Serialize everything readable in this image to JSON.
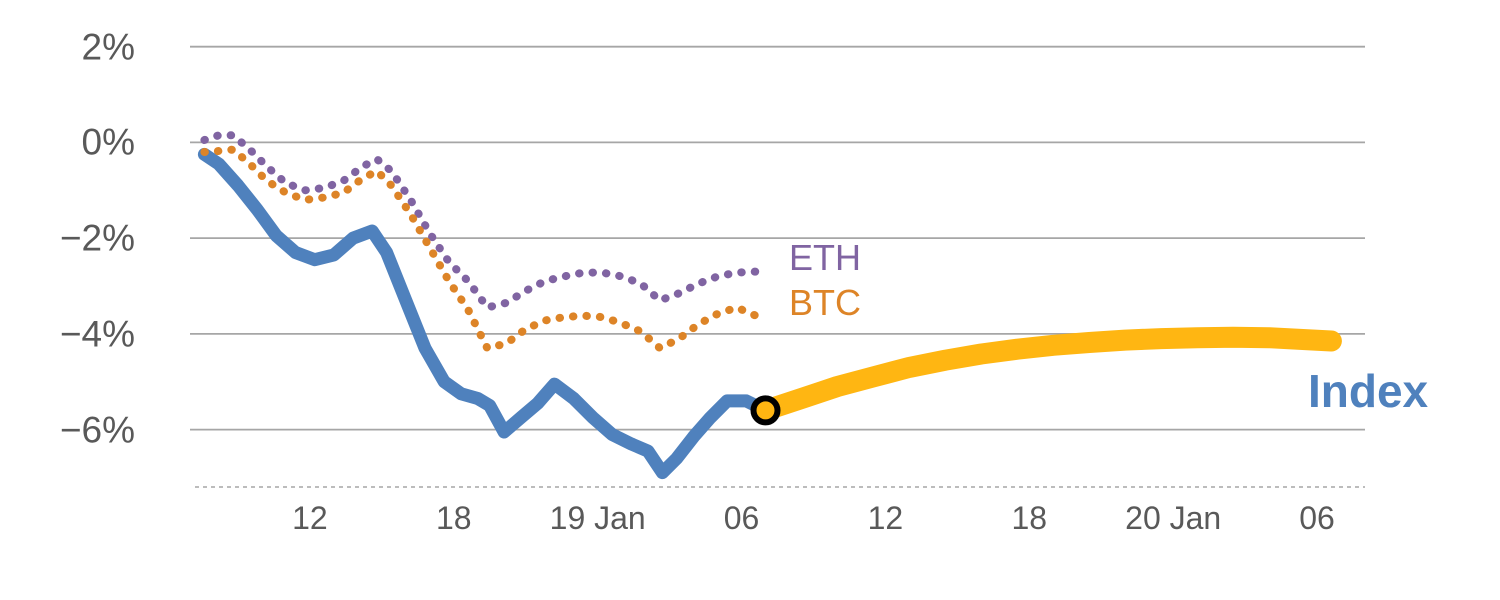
{
  "page": {
    "background": "#FFFFFF"
  },
  "colors": {
    "grid": "#A6A6A6",
    "axis_dashed": "#A6A6A6",
    "tick_text": "#595959"
  },
  "chart_data": {
    "type": "line",
    "title": "",
    "x_axis": {
      "label": "",
      "unit": "time (hours, 18 Jan – 20 Jan)",
      "range": [
        7,
        56
      ],
      "ticks": [
        {
          "x": 12,
          "label": "12"
        },
        {
          "x": 18,
          "label": "18"
        },
        {
          "x": 24,
          "label": "19 Jan"
        },
        {
          "x": 30,
          "label": "06"
        },
        {
          "x": 36,
          "label": "12"
        },
        {
          "x": 42,
          "label": "18"
        },
        {
          "x": 48,
          "label": "20 Jan"
        },
        {
          "x": 54,
          "label": "06"
        }
      ]
    },
    "y_axis": {
      "label": "",
      "unit": "%",
      "range": [
        -7.2,
        2.6
      ],
      "gridlines": true,
      "ticks": [
        {
          "y": 2,
          "label": "2%"
        },
        {
          "y": 0,
          "label": "0%"
        },
        {
          "y": -2,
          "label": "−2%"
        },
        {
          "y": -4,
          "label": "−4%"
        },
        {
          "y": -6,
          "label": "−6%"
        }
      ]
    },
    "series": [
      {
        "name": "ETH",
        "color": "#8064A2",
        "line_style": "dotted",
        "points": [
          [
            7.6,
            0.05
          ],
          [
            8.2,
            0.15
          ],
          [
            8.8,
            0.15
          ],
          [
            9.5,
            -0.15
          ],
          [
            10.2,
            -0.5
          ],
          [
            11,
            -0.85
          ],
          [
            11.8,
            -1.0
          ],
          [
            12.6,
            -0.95
          ],
          [
            13.4,
            -0.8
          ],
          [
            14.2,
            -0.5
          ],
          [
            14.8,
            -0.35
          ],
          [
            15.4,
            -0.6
          ],
          [
            16.2,
            -1.2
          ],
          [
            17,
            -1.9
          ],
          [
            17.8,
            -2.5
          ],
          [
            18.6,
            -2.9
          ],
          [
            19.4,
            -3.45
          ],
          [
            20.2,
            -3.35
          ],
          [
            21,
            -3.1
          ],
          [
            21.8,
            -2.9
          ],
          [
            22.6,
            -2.8
          ],
          [
            23.4,
            -2.72
          ],
          [
            24.2,
            -2.72
          ],
          [
            25,
            -2.8
          ],
          [
            25.8,
            -2.95
          ],
          [
            26.6,
            -3.3
          ],
          [
            27.4,
            -3.15
          ],
          [
            28.2,
            -2.95
          ],
          [
            29,
            -2.8
          ],
          [
            29.8,
            -2.72
          ],
          [
            30.6,
            -2.7
          ]
        ]
      },
      {
        "name": "BTC",
        "color": "#DD8427",
        "line_style": "dotted",
        "points": [
          [
            7.6,
            -0.2
          ],
          [
            8.2,
            -0.18
          ],
          [
            8.8,
            -0.15
          ],
          [
            9.5,
            -0.45
          ],
          [
            10.2,
            -0.8
          ],
          [
            11,
            -1.05
          ],
          [
            11.8,
            -1.2
          ],
          [
            12.6,
            -1.15
          ],
          [
            13.4,
            -1.05
          ],
          [
            14.2,
            -0.75
          ],
          [
            14.8,
            -0.6
          ],
          [
            15.4,
            -0.9
          ],
          [
            16.2,
            -1.5
          ],
          [
            17,
            -2.2
          ],
          [
            17.8,
            -2.9
          ],
          [
            18.6,
            -3.5
          ],
          [
            19.4,
            -4.3
          ],
          [
            20.2,
            -4.2
          ],
          [
            21,
            -3.9
          ],
          [
            21.8,
            -3.72
          ],
          [
            22.6,
            -3.65
          ],
          [
            23.4,
            -3.62
          ],
          [
            24.2,
            -3.65
          ],
          [
            25,
            -3.78
          ],
          [
            25.8,
            -3.95
          ],
          [
            26.6,
            -4.3
          ],
          [
            27.4,
            -4.1
          ],
          [
            28.2,
            -3.8
          ],
          [
            29,
            -3.58
          ],
          [
            29.8,
            -3.45
          ],
          [
            30.6,
            -3.62
          ]
        ]
      },
      {
        "name": "Index",
        "color": "#4F81BD",
        "line_style": "solid",
        "points": [
          [
            7.6,
            -0.25
          ],
          [
            8.2,
            -0.45
          ],
          [
            9,
            -0.9
          ],
          [
            9.8,
            -1.4
          ],
          [
            10.6,
            -1.95
          ],
          [
            11.4,
            -2.3
          ],
          [
            12.2,
            -2.45
          ],
          [
            13,
            -2.35
          ],
          [
            13.8,
            -2.0
          ],
          [
            14.6,
            -1.85
          ],
          [
            15.2,
            -2.3
          ],
          [
            16,
            -3.3
          ],
          [
            16.8,
            -4.3
          ],
          [
            17.6,
            -5.0
          ],
          [
            18.3,
            -5.25
          ],
          [
            19,
            -5.35
          ],
          [
            19.5,
            -5.5
          ],
          [
            20.1,
            -6.05
          ],
          [
            20.8,
            -5.75
          ],
          [
            21.5,
            -5.45
          ],
          [
            22.2,
            -5.05
          ],
          [
            23,
            -5.35
          ],
          [
            23.8,
            -5.75
          ],
          [
            24.6,
            -6.1
          ],
          [
            25.4,
            -6.3
          ],
          [
            26.1,
            -6.45
          ],
          [
            26.7,
            -6.9
          ],
          [
            27.3,
            -6.6
          ],
          [
            28,
            -6.15
          ],
          [
            28.7,
            -5.75
          ],
          [
            29.4,
            -5.4
          ],
          [
            30.2,
            -5.4
          ],
          [
            31,
            -5.6
          ]
        ]
      },
      {
        "name": "Index forecast",
        "color": "#FFB612",
        "line_style": "solid-thick",
        "points": [
          [
            31,
            -5.6
          ],
          [
            32.5,
            -5.35
          ],
          [
            34,
            -5.1
          ],
          [
            35.5,
            -4.9
          ],
          [
            37,
            -4.7
          ],
          [
            38.5,
            -4.55
          ],
          [
            40,
            -4.42
          ],
          [
            41.5,
            -4.32
          ],
          [
            43,
            -4.24
          ],
          [
            44.5,
            -4.18
          ],
          [
            46,
            -4.13
          ],
          [
            47.5,
            -4.1
          ],
          [
            49,
            -4.08
          ],
          [
            50.5,
            -4.07
          ],
          [
            52,
            -4.08
          ],
          [
            53.5,
            -4.12
          ],
          [
            54.6,
            -4.15
          ]
        ]
      }
    ],
    "marker": {
      "series": "Index",
      "x": 31,
      "y": -5.6,
      "fill": "#FFB612",
      "ring_color": "#000000"
    },
    "labels": [
      {
        "text": "ETH",
        "color": "#8064A2"
      },
      {
        "text": "BTC",
        "color": "#DD8427"
      },
      {
        "text": "Index",
        "color": "#4F81BD"
      }
    ]
  }
}
